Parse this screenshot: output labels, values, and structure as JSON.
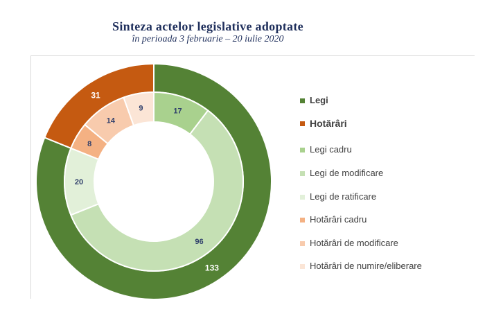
{
  "header": {
    "title": "Sinteza actelor legislative adoptate",
    "subtitle": "în perioada 3 februarie – 20 iulie 2020"
  },
  "chart_data": {
    "type": "donut",
    "outer_ring": [
      {
        "name": "Legi",
        "value": 133,
        "color": "#548235"
      },
      {
        "name": "Hotărâri",
        "value": 31,
        "color": "#c55a11"
      }
    ],
    "inner_ring": [
      {
        "name": "Legi cadru",
        "value": 17,
        "color": "#a9d18e"
      },
      {
        "name": "Legi de modificare",
        "value": 96,
        "color": "#c5e0b4"
      },
      {
        "name": "Legi de ratificare",
        "value": 20,
        "color": "#e2f0d9"
      },
      {
        "name": "Hotărâri cadru",
        "value": 8,
        "color": "#f4b183"
      },
      {
        "name": "Hotărâri de modificare",
        "value": 14,
        "color": "#f8cbad"
      },
      {
        "name": "Hotărâri de numire/eliberare",
        "value": 9,
        "color": "#fbe5d6"
      }
    ],
    "legend": {
      "placement": "right",
      "items": [
        {
          "label": "Legi",
          "color": "#548235",
          "bold": true
        },
        {
          "label": "Hotărâri",
          "color": "#c55a11",
          "bold": true
        },
        {
          "label": "Legi cadru",
          "color": "#a9d18e"
        },
        {
          "label": "Legi de modificare",
          "color": "#c5e0b4"
        },
        {
          "label": "Legi de ratificare",
          "color": "#e2f0d9"
        },
        {
          "label": "Hotărâri cadru",
          "color": "#f4b183"
        },
        {
          "label": "Hotărâri de modificare",
          "color": "#f8cbad"
        },
        {
          "label": "Hotărâri de numire/eliberare",
          "color": "#fbe5d6"
        }
      ]
    }
  }
}
